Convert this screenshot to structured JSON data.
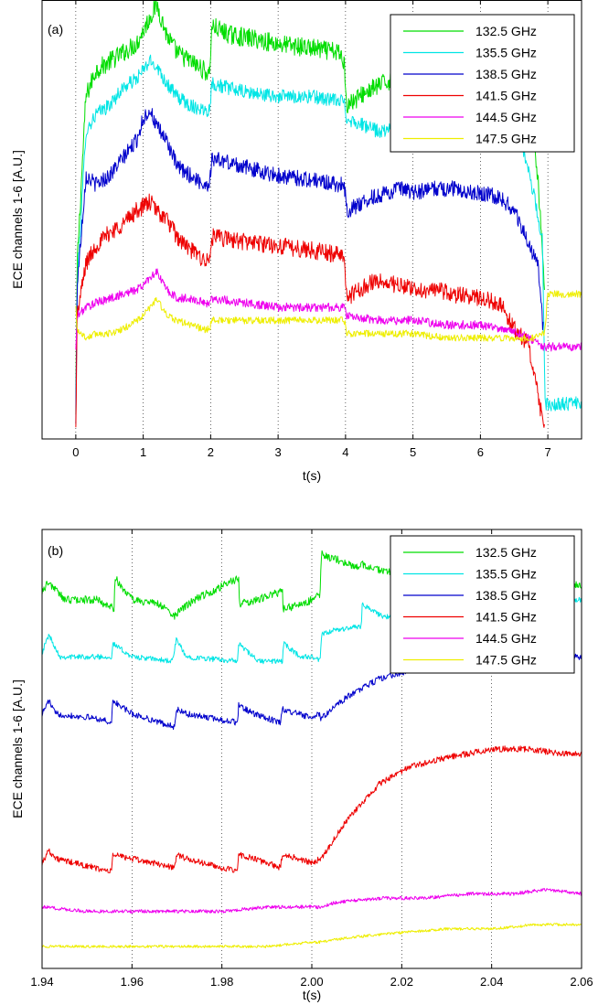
{
  "chart_data": [
    {
      "type": "line",
      "panel_label": "(a)",
      "xlabel": "t(s)",
      "ylabel": "ECE channels 1-6 [A.U.]",
      "xlim": [
        -0.5,
        7.5
      ],
      "ylim": [
        0,
        100
      ],
      "x_ticks": [
        0,
        1,
        2,
        3,
        4,
        5,
        6,
        7
      ],
      "x_tick_labels": [
        "0",
        "1",
        "2",
        "3",
        "4",
        "5",
        "6",
        "7"
      ],
      "grid": "x-dotted",
      "legend": "top-right",
      "series": [
        {
          "name": "132.5 GHz",
          "color": "#00dd00",
          "noise": 2.2,
          "x": [
            0,
            0.02,
            0.15,
            0.3,
            0.5,
            0.7,
            0.9,
            1.0,
            1.1,
            1.2,
            1.35,
            1.5,
            1.7,
            1.9,
            1.98,
            2.02,
            2.3,
            2.7,
            3.0,
            3.5,
            3.9,
            3.98,
            4.02,
            4.3,
            4.7,
            5.0,
            5.5,
            6.0,
            6.3,
            6.5,
            6.7,
            6.85,
            6.95
          ],
          "y": [
            5,
            40,
            78,
            84,
            86,
            88,
            90,
            93,
            96,
            99,
            92,
            88,
            86,
            84,
            83,
            94,
            92,
            91,
            90,
            89,
            88,
            86,
            76,
            79,
            82,
            84,
            85,
            86,
            85,
            83,
            80,
            60,
            35
          ]
        },
        {
          "name": "135.5 GHz",
          "color": "#00e5e5",
          "noise": 1.6,
          "x": [
            0,
            0.02,
            0.15,
            0.3,
            0.5,
            0.7,
            0.9,
            1.0,
            1.1,
            1.2,
            1.35,
            1.5,
            1.7,
            1.9,
            1.98,
            2.02,
            2.5,
            3.0,
            3.5,
            3.9,
            3.98,
            4.02,
            4.5,
            5.0,
            5.5,
            6.0,
            6.2,
            6.4,
            6.6,
            6.8,
            6.92,
            6.96,
            7.5
          ],
          "y": [
            3,
            35,
            70,
            74,
            76,
            80,
            82,
            84,
            86,
            85,
            81,
            78,
            76,
            75,
            75,
            81,
            79,
            78,
            78,
            77,
            77,
            73,
            70,
            71,
            72,
            73,
            73,
            72,
            68,
            55,
            45,
            8,
            8
          ]
        },
        {
          "name": "138.5 GHz",
          "color": "#0000cc",
          "noise": 1.8,
          "x": [
            0,
            0.02,
            0.15,
            0.3,
            0.5,
            0.7,
            0.9,
            1.0,
            1.1,
            1.2,
            1.35,
            1.5,
            1.7,
            1.9,
            1.98,
            2.02,
            2.5,
            3.0,
            3.5,
            3.9,
            3.98,
            4.02,
            4.4,
            4.8,
            5.0,
            5.3,
            5.6,
            6.0,
            6.3,
            6.5,
            6.7,
            6.85,
            6.93
          ],
          "y": [
            3,
            35,
            60,
            58,
            60,
            64,
            68,
            73,
            75,
            71,
            68,
            62,
            60,
            58,
            58,
            64,
            62,
            60,
            59,
            58,
            58,
            52,
            55,
            57,
            56,
            57,
            57,
            56,
            55,
            52,
            45,
            40,
            25
          ]
        },
        {
          "name": "141.5 GHz",
          "color": "#ee0000",
          "noise": 2.0,
          "x": [
            0,
            0.02,
            0.15,
            0.3,
            0.5,
            0.7,
            0.9,
            1.0,
            1.1,
            1.2,
            1.35,
            1.5,
            1.7,
            1.9,
            1.98,
            2.02,
            2.5,
            3.0,
            3.5,
            3.9,
            3.98,
            4.02,
            4.4,
            4.8,
            5.0,
            5.3,
            5.6,
            6.0,
            6.3,
            6.5,
            6.7,
            6.85,
            6.95
          ],
          "y": [
            2,
            28,
            40,
            44,
            47,
            49,
            52,
            53,
            54,
            52,
            50,
            46,
            43,
            41,
            40,
            46,
            45,
            44,
            43,
            42,
            42,
            32,
            36,
            35,
            34,
            34,
            33,
            32,
            31,
            25,
            22,
            10,
            2
          ]
        },
        {
          "name": "144.5 GHz",
          "color": "#ee00ee",
          "noise": 1.0,
          "x": [
            0,
            0.02,
            0.15,
            0.3,
            0.5,
            0.7,
            0.9,
            1.0,
            1.1,
            1.2,
            1.35,
            1.5,
            1.7,
            1.9,
            1.98,
            2.02,
            2.5,
            3.0,
            3.5,
            3.9,
            3.98,
            4.02,
            4.5,
            5.0,
            5.5,
            6.0,
            6.3,
            6.6,
            6.8,
            6.95,
            7.0,
            7.5
          ],
          "y": [
            20,
            28,
            30,
            31,
            32,
            33,
            34,
            35,
            37,
            38,
            34,
            32,
            32,
            31,
            31,
            32,
            31,
            30,
            30,
            30,
            30,
            28,
            27,
            27,
            26,
            26,
            25,
            24,
            22,
            21,
            21,
            21
          ]
        },
        {
          "name": "147.5 GHz",
          "color": "#eeee00",
          "noise": 0.8,
          "x": [
            0,
            0.02,
            0.15,
            0.3,
            0.5,
            0.7,
            0.9,
            1.0,
            1.1,
            1.2,
            1.35,
            1.5,
            1.7,
            1.9,
            1.98,
            2.02,
            2.5,
            3.0,
            3.5,
            3.9,
            3.98,
            4.02,
            4.5,
            5.0,
            5.5,
            6.0,
            6.3,
            6.6,
            6.8,
            6.95,
            7.0,
            7.5
          ],
          "y": [
            30,
            25,
            23,
            24,
            24,
            25,
            27,
            28,
            30,
            32,
            28,
            27,
            26,
            25,
            25,
            27,
            27,
            27,
            27,
            27,
            27,
            24,
            24,
            24,
            23,
            23,
            23,
            23,
            23,
            24,
            33,
            33
          ]
        }
      ]
    },
    {
      "type": "line",
      "panel_label": "(b)",
      "xlabel": "t(s)",
      "ylabel": "ECE channels 1-6 [A.U.]",
      "xlim": [
        1.94,
        2.06
      ],
      "ylim": [
        0,
        100
      ],
      "x_ticks": [
        1.94,
        1.96,
        1.98,
        2.0,
        2.02,
        2.04,
        2.06
      ],
      "x_tick_labels": [
        "1.94",
        "1.96",
        "1.98",
        "2.00",
        "2.02",
        "2.04",
        "2.06"
      ],
      "grid": "x-dotted",
      "legend": "top-right",
      "series": [
        {
          "name": "132.5 GHz",
          "color": "#00dd00",
          "noise": 0.9,
          "x": [
            1.94,
            1.9415,
            1.945,
            1.952,
            1.956,
            1.9562,
            1.96,
            1.966,
            1.9699,
            1.97,
            1.974,
            1.9838,
            1.9839,
            1.988,
            1.9935,
            1.9936,
            1.9985,
            2.0,
            2.0018,
            2.0022,
            2.0027,
            2.006,
            2.0105,
            2.011,
            2.018,
            2.025,
            2.03,
            2.04,
            2.05,
            2.055,
            2.06
          ],
          "y": [
            86,
            88,
            84,
            84,
            82,
            89,
            84,
            83,
            80,
            81,
            84,
            89,
            83,
            84,
            86,
            82,
            83,
            84,
            85,
            95,
            94,
            93,
            91,
            92,
            90,
            89,
            89,
            88,
            89,
            88,
            87
          ]
        },
        {
          "name": "135.5 GHz",
          "color": "#00e5e5",
          "noise": 0.6,
          "x": [
            1.94,
            1.9415,
            1.944,
            1.952,
            1.9555,
            1.9557,
            1.96,
            1.969,
            1.9699,
            1.972,
            1.9835,
            1.9837,
            1.988,
            1.9935,
            1.9937,
            1.9975,
            2.0,
            2.0018,
            2.0022,
            2.005,
            2.011,
            2.0112,
            2.016,
            2.025,
            2.035,
            2.045,
            2.055,
            2.06
          ],
          "y": [
            72,
            76,
            71,
            71,
            71,
            74,
            71,
            70,
            75,
            71,
            70,
            74,
            70,
            70,
            74,
            71,
            71,
            70,
            76,
            77,
            78,
            83,
            80,
            81,
            83,
            84,
            84,
            84
          ]
        },
        {
          "name": "138.5 GHz",
          "color": "#0000cc",
          "noise": 0.7,
          "x": [
            1.94,
            1.9415,
            1.943,
            1.952,
            1.9555,
            1.9557,
            1.96,
            1.9695,
            1.97,
            1.972,
            1.9835,
            1.9837,
            1.987,
            1.993,
            1.9935,
            1.997,
            2.0,
            2.0018,
            2.002,
            2.008,
            2.015,
            2.022,
            2.03,
            2.04,
            2.048,
            2.055,
            2.06
          ],
          "y": [
            58,
            61,
            58,
            57,
            56,
            61,
            58,
            55,
            59,
            58,
            56,
            60,
            58,
            56,
            59,
            58,
            57,
            58,
            57,
            62,
            66,
            68,
            69,
            71,
            72,
            71,
            71
          ]
        },
        {
          "name": "141.5 GHz",
          "color": "#ee0000",
          "noise": 0.7,
          "x": [
            1.94,
            1.9415,
            1.943,
            1.9555,
            1.9557,
            1.96,
            1.9695,
            1.97,
            1.972,
            1.9835,
            1.9837,
            1.987,
            1.993,
            1.9935,
            1.997,
            2.0,
            2.0018,
            2.002,
            2.008,
            2.015,
            2.022,
            2.03,
            2.04,
            2.048,
            2.055,
            2.06
          ],
          "y": [
            24,
            27,
            25,
            22,
            26,
            25,
            23,
            26,
            25,
            22,
            26,
            25,
            23,
            26,
            25,
            24,
            25,
            25,
            34,
            42,
            46,
            48,
            50,
            50,
            49,
            49
          ]
        },
        {
          "name": "144.5 GHz",
          "color": "#ee00ee",
          "noise": 0.4,
          "x": [
            1.94,
            1.95,
            1.96,
            1.97,
            1.98,
            1.99,
            2.0,
            2.0018,
            2.005,
            2.015,
            2.025,
            2.035,
            2.045,
            2.052,
            2.06
          ],
          "y": [
            14,
            13,
            13,
            13,
            13,
            14,
            14,
            14,
            15,
            16,
            16,
            17,
            17,
            18,
            17
          ]
        },
        {
          "name": "147.5 GHz",
          "color": "#eeee00",
          "noise": 0.3,
          "x": [
            1.94,
            1.95,
            1.96,
            1.97,
            1.98,
            1.99,
            2.0,
            2.0018,
            2.008,
            2.018,
            2.03,
            2.04,
            2.05,
            2.06
          ],
          "y": [
            5,
            5,
            5,
            5,
            5,
            5,
            6,
            6,
            7,
            8,
            9,
            9,
            10,
            10
          ]
        }
      ]
    }
  ]
}
